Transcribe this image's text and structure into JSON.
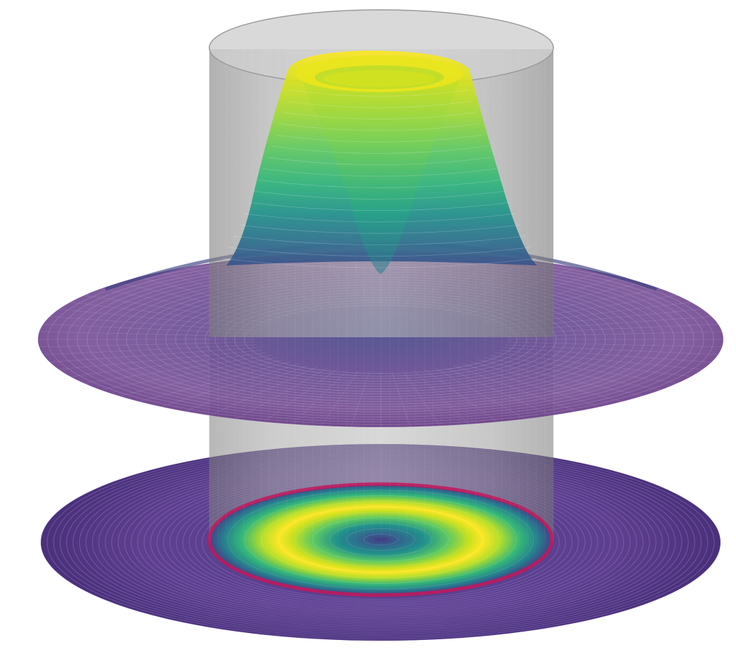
{
  "figure": {
    "kind": "3d-surface-illustration",
    "description_elements": [
      "radially-symmetric-surface",
      "translucent-cylinder",
      "flat-projection-disk",
      "boundary-ring"
    ],
    "colormap": "viridis",
    "colormap_stops": [
      "#440154",
      "#482878",
      "#3e4989",
      "#31688e",
      "#26828e",
      "#1f9e89",
      "#35b779",
      "#6ece58",
      "#b5de2b",
      "#fde725"
    ],
    "colors": {
      "cylinder": "#8a8a8a",
      "cylinder_edge": "#6e6e6e",
      "boundary_ring": "#c2185b",
      "surface_base": "#6a4a8c",
      "mesh_line": "#ffffff"
    }
  }
}
